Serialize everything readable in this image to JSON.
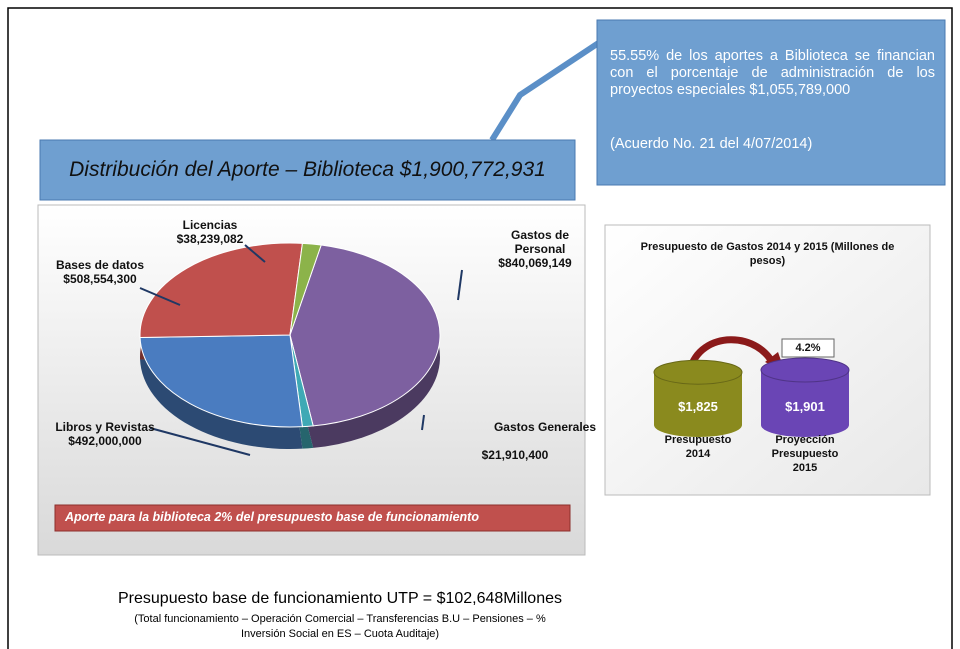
{
  "title": "Distribución del Aporte – Biblioteca $1,900,772,931",
  "callout": {
    "text": "55.55% de los aportes a Biblioteca se financian con el porcentaje de administración de los proyectos especiales $1,055,789,000",
    "note": "(Acuerdo No. 21 del 4/07/2014)"
  },
  "banner": "Aporte para la biblioteca 2% del presupuesto base de funcionamiento",
  "footer": {
    "title": "Presupuesto base de funcionamiento UTP = $102,648Millones",
    "note": "(Total funcionamiento – Operación Comercial – Transferencias B.U – Pensiones – % Inversión Social en ES – Cuota Auditaje)"
  },
  "chart_data": [
    {
      "type": "pie",
      "categories": [
        "Gastos de Personal",
        "Gastos Generales",
        "Libros y Revistas",
        "Bases de datos",
        "Licencias"
      ],
      "values": [
        840069149,
        21910400,
        492000000,
        508554300,
        38239082
      ],
      "value_labels": [
        "$840,069,149",
        "$21,910,400",
        "$492,000,000",
        "$508,554,300",
        "$38,239,082"
      ],
      "colors": [
        "#7d60a0",
        "#3fa9b5",
        "#4a7cc0",
        "#c0504d",
        "#8cb34a"
      ]
    },
    {
      "type": "bar",
      "title": "Presupuesto de Gastos 2014 y 2015 (Millones de pesos)",
      "categories": [
        "Presupuesto 2014",
        "Proyección Presupuesto 2015"
      ],
      "values": [
        1825,
        1901
      ],
      "value_labels": [
        "$1,825",
        "$1,901"
      ],
      "colors": [
        "#8a8a1e",
        "#6a45b5"
      ],
      "annotation": "4.2%"
    }
  ]
}
